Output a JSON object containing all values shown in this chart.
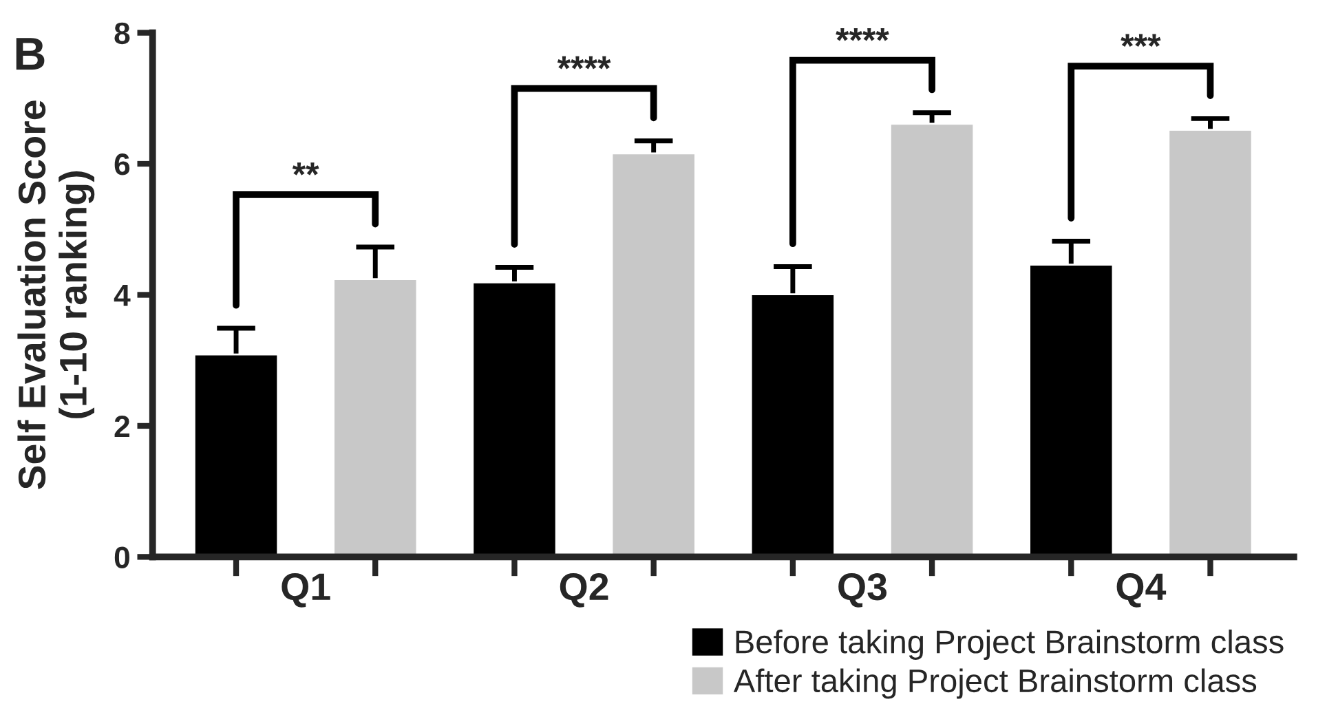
{
  "chart_data": {
    "type": "bar",
    "ylabel": "Self Evaluation Score\n(1-10 ranking)",
    "categories": [
      "Q1",
      "Q2",
      "Q3",
      "Q4"
    ],
    "series": [
      {
        "name": "Before taking Project Brainstorm class",
        "color": "#000000",
        "values": [
          3.09,
          4.19,
          4.01,
          4.46
        ],
        "errors": [
          0.4,
          0.23,
          0.42,
          0.36
        ]
      },
      {
        "name": "After taking Project Brainstorm class",
        "color": "#c8c8c8",
        "values": [
          4.24,
          6.16,
          6.61,
          6.52
        ],
        "errors": [
          0.49,
          0.19,
          0.17,
          0.17
        ]
      }
    ],
    "ylim": [
      0,
      8
    ],
    "yticks": [
      0,
      2,
      4,
      6,
      8
    ],
    "grid": false,
    "legend": "bottom right",
    "annotations": [
      "B",
      "**",
      "****",
      "****",
      "***"
    ]
  }
}
